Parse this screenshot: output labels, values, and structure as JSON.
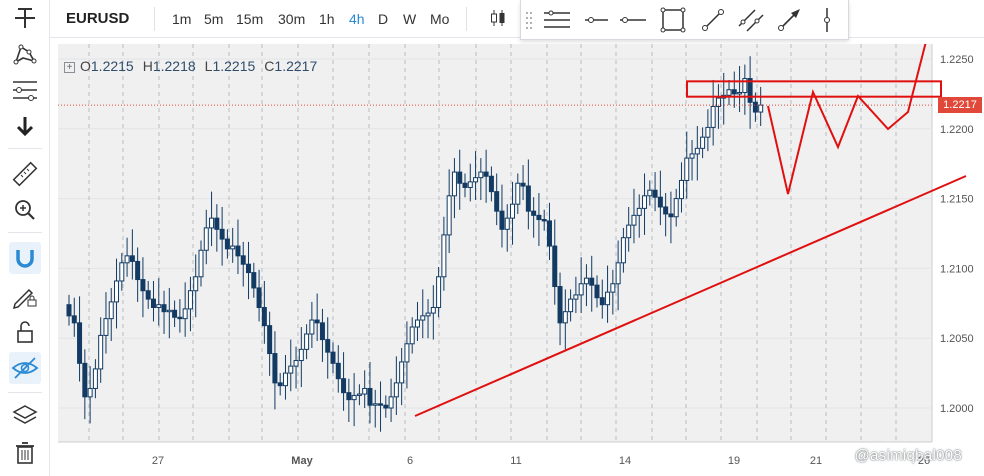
{
  "symbol": "EURUSD",
  "timeframes": [
    {
      "label": "1m",
      "active": false
    },
    {
      "label": "5m",
      "active": false
    },
    {
      "label": "15m",
      "active": false
    },
    {
      "label": "30m",
      "active": false
    },
    {
      "label": "1h",
      "active": false
    },
    {
      "label": "4h",
      "active": true
    },
    {
      "label": "D",
      "active": false
    },
    {
      "label": "W",
      "active": false
    },
    {
      "label": "Mo",
      "active": false
    }
  ],
  "legend": {
    "o_label": "O",
    "o": "1.2215",
    "h_label": "H",
    "h": "1.2218",
    "l_label": "L",
    "l": "1.2215",
    "c_label": "C",
    "c": "1.2217"
  },
  "last_price": "1.2217",
  "watermark": "@asimiqbal008",
  "icons": {
    "sidebar": [
      "crosshair-icon",
      "pattern-icon",
      "fib-icon",
      "arrow-down-icon",
      "ruler-icon",
      "zoom-in-icon",
      "magnet-icon",
      "pencil-lock-icon",
      "unlock-icon",
      "eye-hide-icon",
      "layers-icon",
      "trash-icon"
    ],
    "drawing": [
      "horizontal-lines-icon",
      "horizontal-ray-icon",
      "horizontal-line-icon",
      "rectangle-icon",
      "trend-line-icon",
      "parallel-channel-icon",
      "arrow-icon",
      "vertical-line-icon"
    ]
  },
  "colors": {
    "bull": "#ffffff",
    "bear": "#123a63",
    "annotation": "#e01010",
    "active": "#2a8ad4"
  },
  "chart_data": {
    "type": "candlestick",
    "symbol": "EURUSD",
    "interval": "4h",
    "y_ticks": [
      "1.2250",
      "1.2200",
      "1.2150",
      "1.2100",
      "1.2050",
      "1.2000"
    ],
    "ylim": [
      1.1975,
      1.2265
    ],
    "x_ticks": [
      "27",
      "May",
      "6",
      "11",
      "14",
      "19",
      "21",
      "26"
    ],
    "last_price": 1.2217,
    "grid": true,
    "series": [
      {
        "name": "EURUSD",
        "close": [
          1.2066,
          1.2061,
          1.2032,
          1.2008,
          1.2014,
          1.2028,
          1.2052,
          1.2064,
          1.2076,
          1.2091,
          1.2104,
          1.2109,
          1.2105,
          1.2092,
          1.2084,
          1.2078,
          1.2072,
          1.2074,
          1.2069,
          1.207,
          1.2065,
          1.2064,
          1.2071,
          1.2084,
          1.2094,
          1.2113,
          1.2129,
          1.2136,
          1.2128,
          1.2121,
          1.2114,
          1.2116,
          1.2109,
          1.2103,
          1.2097,
          1.2086,
          1.2072,
          1.2059,
          1.2039,
          1.2018,
          1.2016,
          1.2025,
          1.203,
          1.2034,
          1.2042,
          1.2053,
          1.2063,
          1.2061,
          1.2049,
          1.204,
          1.2032,
          1.2021,
          1.2011,
          1.2006,
          1.2009,
          1.201,
          1.2014,
          1.2002,
          1.2003,
          1.2002,
          1.2,
          1.2008,
          1.2018,
          1.2033,
          1.2046,
          1.2058,
          1.2063,
          1.2066,
          1.2068,
          1.2072,
          1.2094,
          1.2124,
          1.2152,
          1.2169,
          1.2161,
          1.2158,
          1.2162,
          1.2165,
          1.2169,
          1.2166,
          1.2155,
          1.2141,
          1.2128,
          1.2136,
          1.2146,
          1.2161,
          1.2159,
          1.2141,
          1.2138,
          1.2135,
          1.2134,
          1.2116,
          1.2087,
          1.2061,
          1.2069,
          1.2078,
          1.2081,
          1.2089,
          1.2093,
          1.2088,
          1.2079,
          1.2074,
          1.2083,
          1.2089,
          1.2104,
          1.2122,
          1.2131,
          1.2138,
          1.2143,
          1.2152,
          1.2156,
          1.2151,
          1.2144,
          1.2139,
          1.2137,
          1.215,
          1.2163,
          1.2179,
          1.2182,
          1.2186,
          1.2194,
          1.2201,
          1.2216,
          1.2222,
          1.2224,
          1.2228,
          1.2225,
          1.2226,
          1.2236,
          1.2219,
          1.2212,
          1.2217
        ]
      }
    ],
    "annotations": [
      {
        "shape": "rectangle",
        "label": "resistance zone",
        "y_range": [
          1.2223,
          1.2234
        ]
      },
      {
        "shape": "trend-line",
        "label": "ascending support"
      },
      {
        "shape": "polyline",
        "label": "projected zigzag"
      }
    ]
  }
}
